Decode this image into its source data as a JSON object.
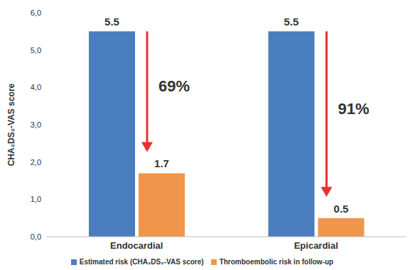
{
  "chart_data": {
    "type": "bar",
    "categories": [
      "Endocardial",
      "Epicardial"
    ],
    "series": [
      {
        "name": "Estimated risk (CHA₂DS₂-VAS score)",
        "color": "#4a7dbf",
        "values": [
          5.5,
          5.5
        ]
      },
      {
        "name": "Thromboembolic risk in follow-up",
        "color": "#f0964c",
        "values": [
          1.7,
          0.5
        ]
      }
    ],
    "y_label": "CHA₂DS₂-VAS score",
    "ylim": [
      0,
      6
    ],
    "yticks": [
      {
        "value": 0,
        "label": "0,0"
      },
      {
        "value": 1,
        "label": "1,0"
      },
      {
        "value": 2,
        "label": "2,0"
      },
      {
        "value": 3,
        "label": "3,0"
      },
      {
        "value": 4,
        "label": "4,0"
      },
      {
        "value": 5,
        "label": "5,0"
      },
      {
        "value": 6,
        "label": "6,0"
      }
    ],
    "annotations": [
      {
        "category": "Endocardial",
        "text": "69%"
      },
      {
        "category": "Epicardial",
        "text": "91%"
      }
    ],
    "data_labels": true,
    "legend": "bottom",
    "grid": false
  }
}
